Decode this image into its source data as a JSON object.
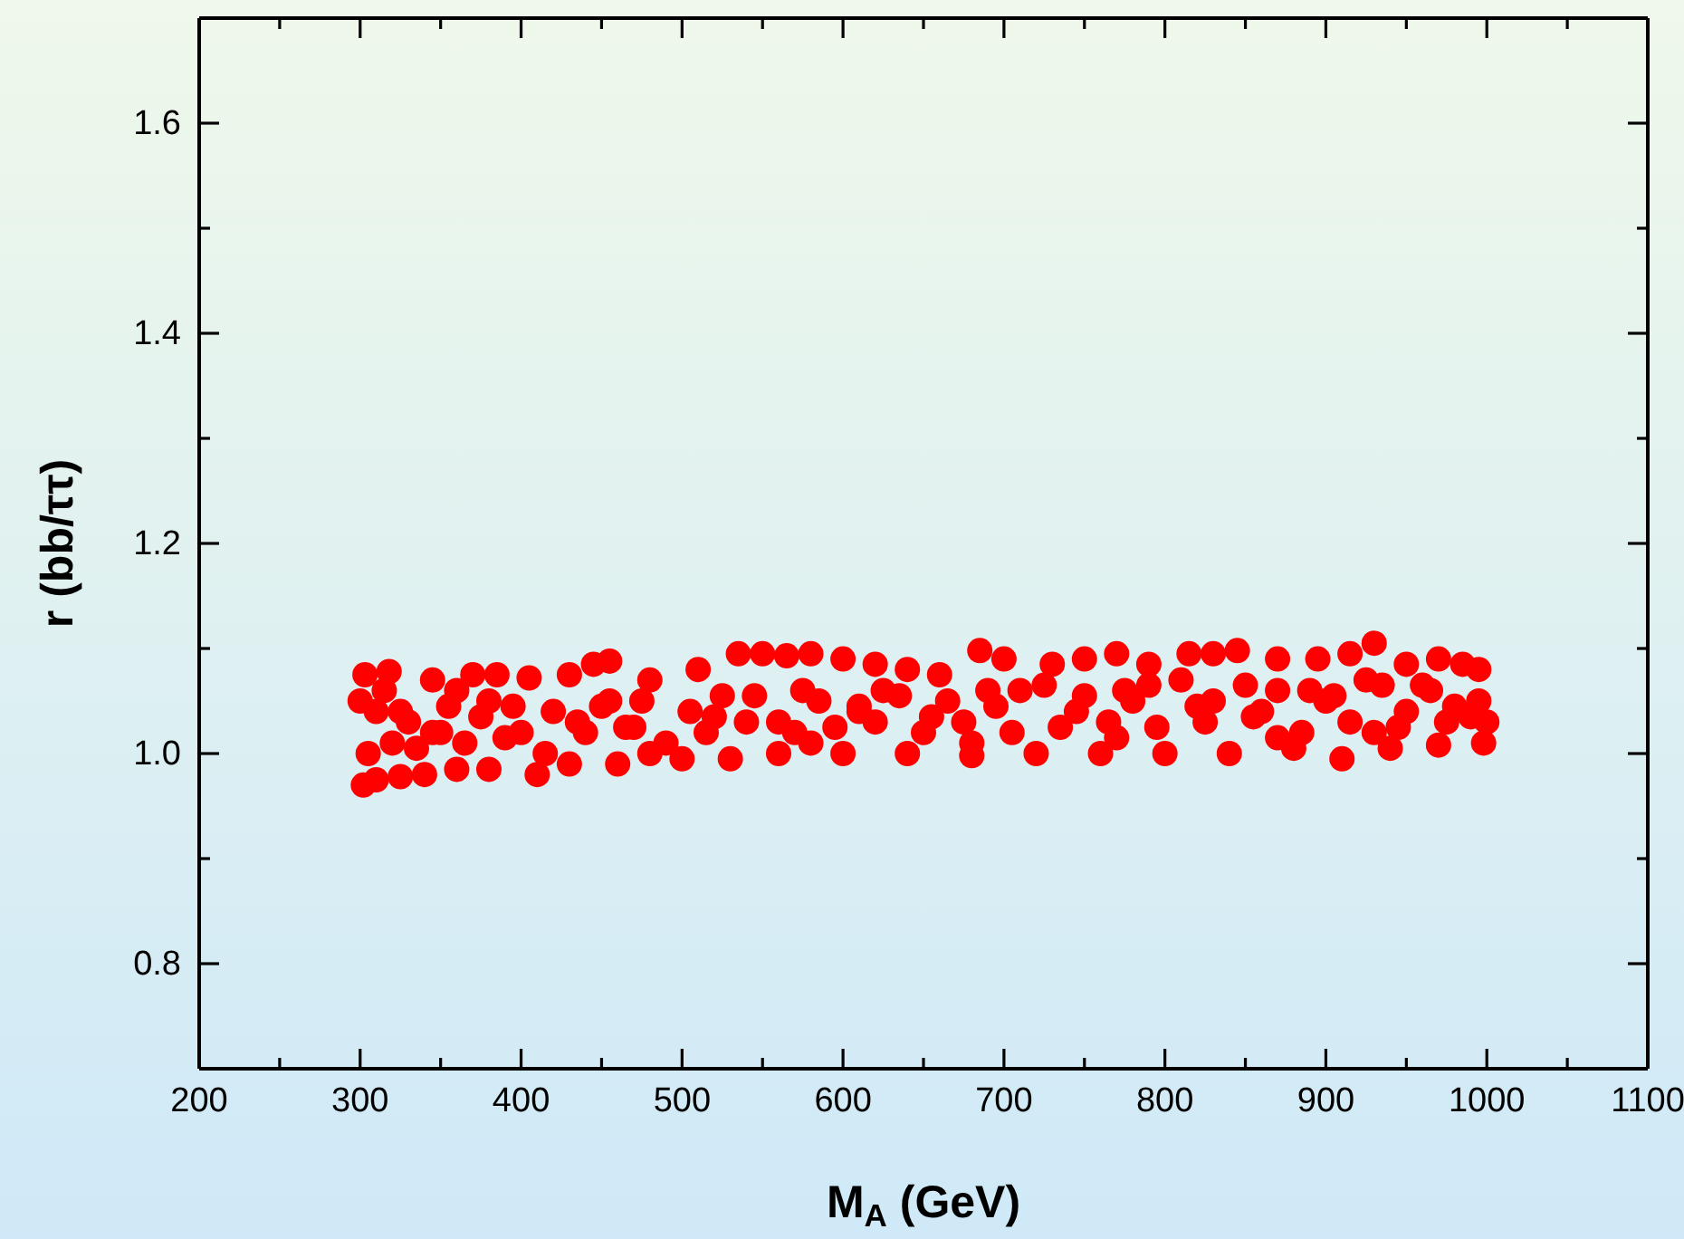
{
  "chart_data": {
    "type": "scatter",
    "xlabel": "M$_{A}$ (GeV)",
    "ylabel": "r (bb/ττ)",
    "marker": "circle",
    "grid": false,
    "xlim": [
      200,
      1100
    ],
    "xticks": [
      {
        "value": 200,
        "label": "200"
      },
      {
        "value": 250,
        "label": null
      },
      {
        "value": 300,
        "label": "300"
      },
      {
        "value": 350,
        "label": null
      },
      {
        "value": 400,
        "label": "400"
      },
      {
        "value": 450,
        "label": null
      },
      {
        "value": 500,
        "label": "500"
      },
      {
        "value": 550,
        "label": null
      },
      {
        "value": 600,
        "label": "600"
      },
      {
        "value": 650,
        "label": null
      },
      {
        "value": 700,
        "label": "700"
      },
      {
        "value": 750,
        "label": null
      },
      {
        "value": 800,
        "label": "800"
      },
      {
        "value": 850,
        "label": null
      },
      {
        "value": 900,
        "label": "900"
      },
      {
        "value": 950,
        "label": null
      },
      {
        "value": 1000,
        "label": "1000"
      },
      {
        "value": 1050,
        "label": null
      },
      {
        "value": 1100,
        "label": "1100"
      }
    ],
    "ylim": [
      0.7,
      1.7
    ],
    "yticks": [
      {
        "value": 0.7,
        "label": null
      },
      {
        "value": 0.8,
        "label": "0.8"
      },
      {
        "value": 0.9,
        "label": null
      },
      {
        "value": 1.0,
        "label": "1.0"
      },
      {
        "value": 1.1,
        "label": null
      },
      {
        "value": 1.2,
        "label": "1.2"
      },
      {
        "value": 1.3,
        "label": null
      },
      {
        "value": 1.4,
        "label": "1.4"
      },
      {
        "value": 1.5,
        "label": null
      },
      {
        "value": 1.6,
        "label": "1.6"
      },
      {
        "value": 1.7,
        "label": null
      }
    ],
    "series": [
      {
        "color": "#ff0000",
        "x": [
          300,
          303,
          318,
          345,
          370,
          385,
          405,
          430,
          445,
          455,
          480,
          510,
          535,
          550,
          565,
          580,
          600,
          620,
          640,
          660,
          685,
          700,
          730,
          750,
          770,
          790,
          815,
          830,
          845,
          870,
          895,
          915,
          930,
          950,
          970,
          985,
          995,
          302,
          310,
          325,
          340,
          360,
          380,
          410,
          430,
          460,
          500,
          530,
          560,
          600,
          640,
          680,
          720,
          760,
          800,
          840,
          880,
          910,
          940,
          970,
          998,
          1000,
          305,
          320,
          335,
          350,
          365,
          390,
          415,
          440,
          465,
          490,
          515,
          540,
          570,
          595,
          620,
          650,
          675,
          705,
          735,
          765,
          795,
          825,
          855,
          885,
          915,
          945,
          975,
          995,
          310,
          330,
          355,
          380,
          420,
          450,
          475,
          505,
          545,
          585,
          625,
          665,
          710,
          750,
          790,
          830,
          870,
          905,
          935,
          965,
          610,
          315,
          345,
          375,
          400,
          435,
          470,
          520,
          560,
          610,
          655,
          695,
          745,
          780,
          820,
          860,
          900,
          950,
          980,
          990,
          325,
          395,
          455,
          525,
          575,
          635,
          690,
          725,
          775,
          810,
          850,
          890,
          925,
          960,
          360,
          480,
          580,
          680,
          770,
          870,
          930
        ],
        "values": [
          1.05,
          1.075,
          1.078,
          1.07,
          1.075,
          1.075,
          1.072,
          1.075,
          1.085,
          1.088,
          1.07,
          1.08,
          1.095,
          1.095,
          1.093,
          1.095,
          1.09,
          1.085,
          1.08,
          1.075,
          1.098,
          1.09,
          1.085,
          1.09,
          1.095,
          1.085,
          1.095,
          1.095,
          1.098,
          1.09,
          1.09,
          1.095,
          1.105,
          1.085,
          1.09,
          1.085,
          1.08,
          0.97,
          0.975,
          0.978,
          0.98,
          0.985,
          0.985,
          0.98,
          0.99,
          0.99,
          0.995,
          0.995,
          1.0,
          1.0,
          1.0,
          0.998,
          1.0,
          1.0,
          1.0,
          1.0,
          1.005,
          0.995,
          1.005,
          1.008,
          1.01,
          1.03,
          1.0,
          1.01,
          1.005,
          1.02,
          1.01,
          1.015,
          1.0,
          1.02,
          1.025,
          1.01,
          1.02,
          1.03,
          1.02,
          1.025,
          1.03,
          1.02,
          1.03,
          1.02,
          1.025,
          1.03,
          1.025,
          1.03,
          1.035,
          1.02,
          1.03,
          1.025,
          1.03,
          1.05,
          1.04,
          1.03,
          1.045,
          1.05,
          1.04,
          1.045,
          1.05,
          1.04,
          1.055,
          1.05,
          1.06,
          1.05,
          1.06,
          1.055,
          1.065,
          1.05,
          1.06,
          1.055,
          1.065,
          1.06,
          1.045,
          1.06,
          1.02,
          1.035,
          1.02,
          1.03,
          1.025,
          1.035,
          1.03,
          1.04,
          1.035,
          1.045,
          1.04,
          1.05,
          1.045,
          1.04,
          1.05,
          1.04,
          1.045,
          1.035,
          1.04,
          1.045,
          1.05,
          1.055,
          1.06,
          1.055,
          1.06,
          1.065,
          1.06,
          1.07,
          1.065,
          1.06,
          1.07,
          1.065,
          1.06,
          1.0,
          1.01,
          1.01,
          1.015,
          1.015,
          1.02
        ]
      }
    ]
  }
}
